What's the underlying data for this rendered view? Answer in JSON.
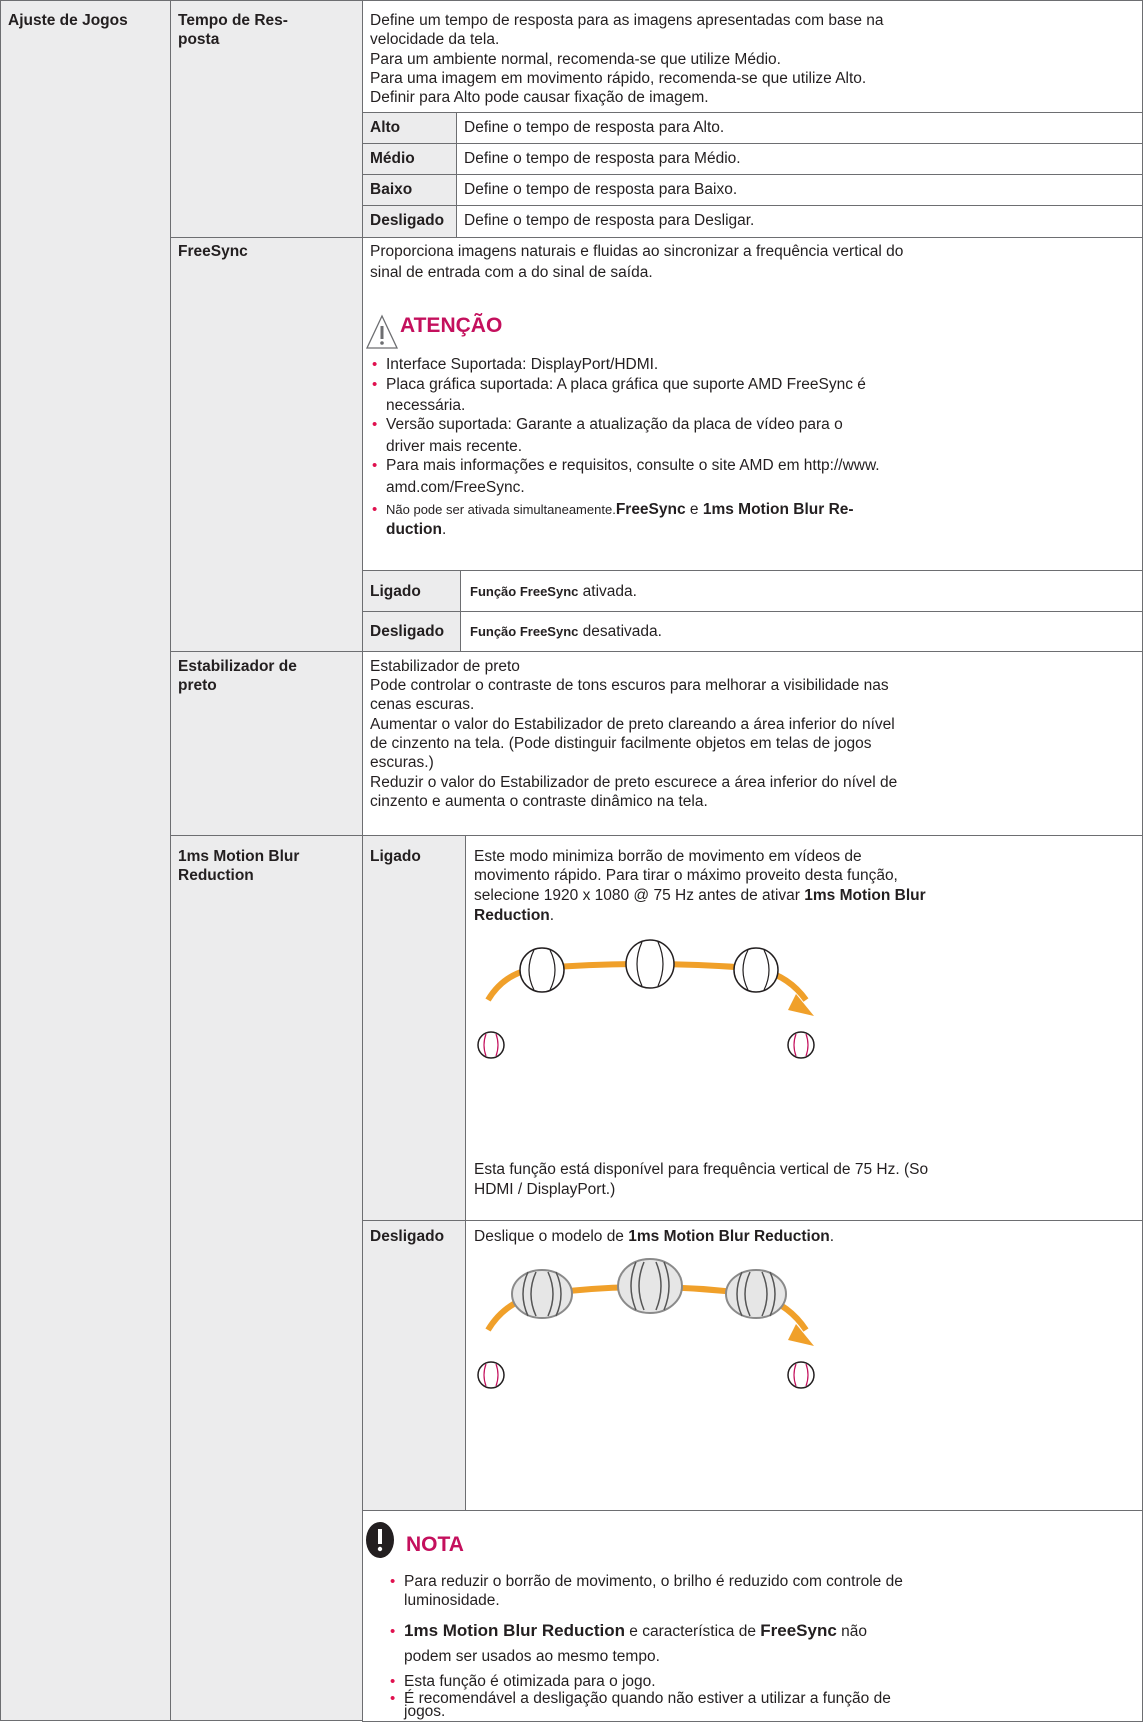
{
  "section": "Ajuste de Jogos",
  "rows": [
    {
      "label": [
        "Tempo de Res-",
        "posta"
      ],
      "description": [
        "Define um tempo de resposta para as imagens apresentadas com base na",
        "velocidade da tela.",
        "Para um ambiente normal, recomenda-se que utilize Médio.",
        "Para uma imagem em movimento rápido, recomenda-se que utilize Alto.",
        "Definir para Alto pode causar fixação de imagem."
      ],
      "options": [
        {
          "name": "Alto",
          "text": "Define o tempo de resposta para Alto."
        },
        {
          "name": "Médio",
          "text": "Define o tempo de resposta para Médio."
        },
        {
          "name": "Baixo",
          "text": "Define o tempo de resposta para Baixo."
        },
        {
          "name": "Desligado",
          "text": "Define o tempo de resposta para Desligar."
        }
      ]
    },
    {
      "label": [
        "FreeSync"
      ],
      "description": [
        "Proporciona imagens naturais e fluidas ao sincronizar a frequência vertical do",
        "sinal de entrada com a do sinal de saída."
      ],
      "caution": {
        "title": "ATENÇÃO",
        "items": [
          [
            "Interface Suportada: DisplayPort/HDMI."
          ],
          [
            "Placa gráfica suportada: A placa gráfica que suporte AMD FreeSync é",
            "necessária."
          ],
          [
            "Versão suportada: Garante a atualização da placa de vídeo para o",
            "driver mais recente."
          ],
          [
            "Para mais informações e requisitos, consulte o site AMD em http://www.",
            "amd.com/FreeSync."
          ],
          [
            "Não pode ser ativada simultaneamente.",
            "FreeSync",
            " e ",
            "1ms Motion Blur Re-",
            "duction",
            "."
          ]
        ]
      },
      "options": [
        {
          "name": "Ligado",
          "text": [
            "Função FreeSync",
            " ativada."
          ]
        },
        {
          "name": "Desligado",
          "text": [
            "Função FreeSync",
            " desativada."
          ]
        }
      ]
    },
    {
      "label": [
        "Estabilizador de",
        "preto"
      ],
      "description": [
        "Estabilizador de preto",
        "Pode controlar o contraste de tons escuros para melhorar a visibilidade nas",
        "cenas escuras.",
        "Aumentar o valor do Estabilizador de preto clareando a área inferior do nível",
        "de cinzento na tela. (Pode distinguir facilmente objetos em telas de jogos",
        "escuras.)",
        "Reduzir o valor do Estabilizador de preto escurece a área inferior do nível de",
        "cinzento e aumenta o contraste dinâmico na tela."
      ]
    },
    {
      "label": [
        "1ms Motion Blur",
        "Reduction"
      ],
      "options": [
        {
          "name": "Ligado",
          "text": [
            "Este modo minimiza borrão de movimento em vídeos de",
            "movimento rápido. Para tirar o máximo proveito desta função,",
            "selecione 1920 x 1080 @ 75 Hz antes de ativar ",
            "1ms Motion Blur",
            "Reduction",
            "."
          ],
          "note": [
            "Esta função está disponível para frequência vertical de 75 Hz. (So",
            "HDMI / DisplayPort.)"
          ]
        },
        {
          "name": "Desligado",
          "text": [
            "Deslique o modelo de ",
            "1ms Motion Blur Reduction",
            "."
          ]
        }
      ],
      "note": {
        "title": "NOTA",
        "items": [
          [
            "Para reduzir o borrão de movimento, o brilho é reduzido com controle de",
            "luminosidade."
          ],
          [
            "1ms Motion Blur Reduction",
            " e característica de ",
            "FreeSync",
            " não",
            "podem ser usados ao mesmo tempo."
          ],
          [
            "Esta função é otimizada para o jogo."
          ],
          [
            "É recomendável a desligação quando não estiver a utilizar a função de",
            "jogos."
          ]
        ]
      }
    }
  ]
}
